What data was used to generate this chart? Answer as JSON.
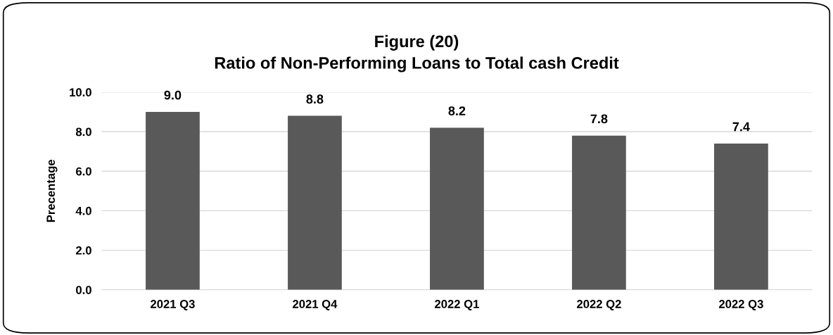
{
  "chart_data": {
    "type": "bar",
    "title": "Figure (20)\nRatio of Non-Performing Loans to Total cash Credit",
    "ylabel": "Precentage",
    "categories": [
      "2021 Q3",
      "2021 Q4",
      "2022 Q1",
      "2022 Q2",
      "2022 Q3"
    ],
    "values": [
      9.0,
      8.8,
      8.2,
      7.8,
      7.4
    ],
    "value_labels": [
      "9.0",
      "8.8",
      "8.2",
      "7.8",
      "7.4"
    ],
    "color": "#595959",
    "ylim": [
      0,
      10
    ],
    "yticks": [
      {
        "value": 0,
        "label": "0.0"
      },
      {
        "value": 2,
        "label": "2.0"
      },
      {
        "value": 4,
        "label": "4.0"
      },
      {
        "value": 6,
        "label": "6.0"
      },
      {
        "value": 8,
        "label": "8.0"
      },
      {
        "value": 10,
        "label": "10.0"
      }
    ],
    "grid": "y",
    "legend": false
  }
}
